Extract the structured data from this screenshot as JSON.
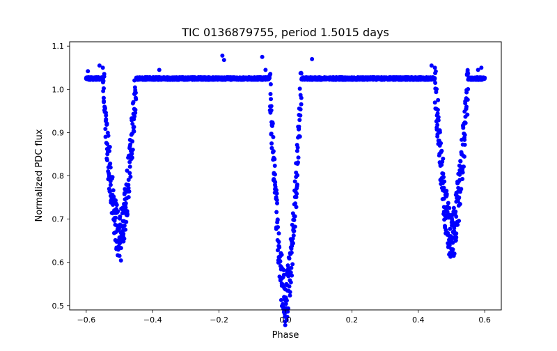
{
  "chart_data": {
    "type": "scatter",
    "title": "TIC 0136879755, period 1.5015 days",
    "xlabel": "Phase",
    "ylabel": "Normalized PDC flux",
    "xlim": [
      -0.65,
      0.65
    ],
    "ylim": [
      0.49,
      1.11
    ],
    "xticks": [
      -0.6,
      -0.4,
      -0.2,
      0.0,
      0.2,
      0.4,
      0.6
    ],
    "xtick_labels": [
      "−0.6",
      "−0.4",
      "−0.2",
      "0.0",
      "0.2",
      "0.4",
      "0.6"
    ],
    "yticks": [
      0.5,
      0.6,
      0.7,
      0.8,
      0.9,
      1.0,
      1.1
    ],
    "ytick_labels": [
      "0.5",
      "0.6",
      "0.7",
      "0.8",
      "0.9",
      "1.0",
      "1.1"
    ],
    "grid": false,
    "marker_color": "#0000ff",
    "phase_range": [
      -0.6,
      0.6
    ],
    "baseline_flux": 1.025,
    "eclipses": [
      {
        "center_phase": -0.5,
        "min_flux": 0.655,
        "width": 0.05
      },
      {
        "center_phase": 0.0,
        "min_flux": 0.51,
        "width": 0.048
      },
      {
        "center_phase": 0.5,
        "min_flux": 0.655,
        "width": 0.05
      }
    ],
    "outliers": [
      [
        -0.19,
        1.078
      ],
      [
        -0.185,
        1.068
      ],
      [
        -0.07,
        1.075
      ],
      [
        0.08,
        1.07
      ],
      [
        -0.06,
        1.045
      ],
      [
        0.44,
        1.055
      ],
      [
        -0.56,
        1.055
      ],
      [
        0.59,
        1.05
      ],
      [
        -0.595,
        1.042
      ],
      [
        0.58,
        1.045
      ],
      [
        -0.55,
        1.05
      ],
      [
        0.45,
        1.05
      ],
      [
        -0.38,
        1.045
      ]
    ]
  }
}
